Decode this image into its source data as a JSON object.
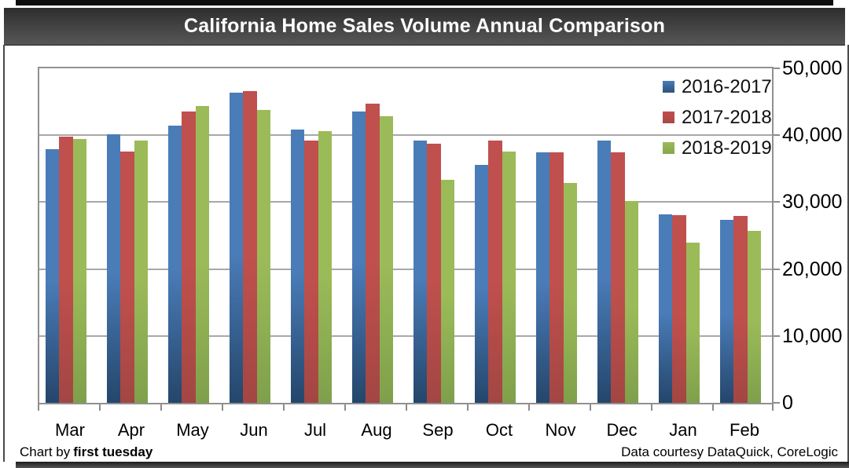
{
  "title": "California Home Sales Volume Annual Comparison",
  "footer": {
    "credit_prefix": "Chart by",
    "credit_brand": "first tuesday",
    "data_courtesy": "Data courtesy DataQuick, CoreLogic"
  },
  "colors": {
    "series_2016_2017": "#4a7cb8",
    "series_2017_2018": "#c0504d",
    "series_2018_2019": "#9bbb59",
    "title_bar_dark": "#2d2d2d",
    "grid": "#a8a8a8"
  },
  "chart_data": {
    "type": "bar",
    "title": "California Home Sales Volume Annual Comparison",
    "categories": [
      "Mar",
      "Apr",
      "May",
      "Jun",
      "Jul",
      "Aug",
      "Sep",
      "Oct",
      "Nov",
      "Dec",
      "Jan",
      "Feb"
    ],
    "series": [
      {
        "name": "2016-2017",
        "color": "#4a7cb8",
        "color_dark": "#24466b",
        "values": [
          37900,
          40100,
          41400,
          46400,
          40800,
          43600,
          39200,
          35600,
          37500,
          39200,
          28200,
          27400
        ]
      },
      {
        "name": "2017-2018",
        "color": "#c0504d",
        "color_dark": "#a34643",
        "values": [
          39800,
          37600,
          43500,
          46600,
          39200,
          44700,
          38700,
          39200,
          37500,
          37500,
          28100,
          27900
        ]
      },
      {
        "name": "2018-2019",
        "color": "#9bbb59",
        "color_dark": "#7fa04b",
        "values": [
          39400,
          39200,
          44400,
          43800,
          40600,
          42800,
          33300,
          37600,
          32900,
          30200,
          23900,
          25700
        ]
      }
    ],
    "ylim": [
      0,
      50000
    ],
    "ytick_interval": 10000,
    "ytick_labels": [
      "0",
      "10,000",
      "20,000",
      "30,000",
      "40,000",
      "50,000"
    ],
    "y_axis_side": "right",
    "grid": true,
    "legend_position": "top-right"
  }
}
